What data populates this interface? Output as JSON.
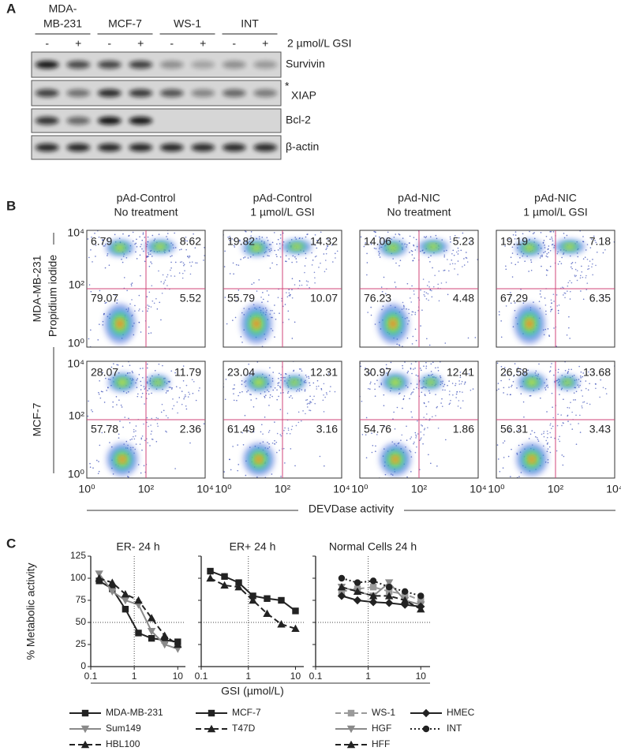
{
  "panel_a": {
    "label": "A",
    "groups": [
      [
        "MDA-",
        "MB-231"
      ],
      [
        "MCF-7"
      ],
      [
        "WS-1"
      ],
      [
        "INT"
      ]
    ],
    "lanes": [
      "-",
      "+",
      "-",
      "+",
      "-",
      "+",
      "-",
      "+"
    ],
    "treatment": "2 µmol/L GSI",
    "proteins": [
      "Survivin",
      "XIAP",
      "Bcl-2",
      "β-actin"
    ],
    "xiap_mark": "*"
  },
  "panel_b": {
    "label": "B",
    "columns": [
      [
        "pAd-Control",
        "No treatment"
      ],
      [
        "pAd-Control",
        "1 µmol/L GSI"
      ],
      [
        "pAd-NIC",
        "No treatment"
      ],
      [
        "pAd-NIC",
        "1 µmol/L GSI"
      ]
    ],
    "rows": [
      "MDA-MB-231",
      "MCF-7"
    ],
    "y_label": "Propidium iodide",
    "x_label": "DEVDase activity",
    "ticks": [
      "10⁰",
      "10²",
      "10⁴"
    ],
    "quadrants": [
      [
        [
          6.79,
          8.62,
          79.07,
          5.52
        ],
        [
          19.82,
          14.32,
          55.79,
          10.07
        ],
        [
          14.06,
          5.23,
          76.23,
          4.48
        ],
        [
          19.19,
          7.18,
          67.29,
          6.35
        ]
      ],
      [
        [
          28.07,
          11.79,
          57.78,
          2.36
        ],
        [
          23.04,
          12.31,
          61.49,
          3.16
        ],
        [
          30.97,
          12.41,
          54.76,
          1.86
        ],
        [
          26.58,
          13.68,
          56.31,
          3.43
        ]
      ]
    ]
  },
  "panel_c": {
    "label": "C"
  },
  "chart_data": [
    {
      "type": "line",
      "title": "ER-  24 h",
      "y_label": "% Metabolic activity",
      "log_x": true,
      "xlim": [
        0.1,
        15
      ],
      "xticks": [
        0.1,
        1,
        10
      ],
      "ylim": [
        0,
        125
      ],
      "yticks": [
        0,
        25,
        50,
        75,
        100,
        125
      ],
      "hline": 50,
      "vline": 1,
      "x": [
        0.156,
        0.3125,
        0.625,
        1.25,
        2.5,
        5,
        10
      ],
      "series": [
        {
          "name": "MDA-MB-231",
          "color": "#222222",
          "line_style": "solid",
          "marker": "square",
          "values": [
            97,
            88,
            65,
            38,
            32,
            30,
            28
          ]
        },
        {
          "name": "Sum149",
          "color": "#8a8a8a",
          "line_style": "solid",
          "marker": "triangle-down",
          "values": [
            105,
            85,
            75,
            70,
            40,
            25,
            20
          ]
        },
        {
          "name": "HBL100",
          "color": "#222222",
          "line_style": "dashed",
          "marker": "triangle",
          "values": [
            100,
            95,
            82,
            75,
            55,
            35,
            25
          ]
        }
      ]
    },
    {
      "type": "line",
      "title": "ER+ 24 h",
      "x_label": "GSI (µmol/L)",
      "log_x": true,
      "xlim": [
        0.1,
        15
      ],
      "xticks": [
        0.1,
        1,
        10
      ],
      "ylim": [
        0,
        125
      ],
      "yticks": [
        0,
        25,
        50,
        75,
        100,
        125
      ],
      "hline": 50,
      "vline": 1,
      "x": [
        0.156,
        0.3125,
        0.625,
        1.25,
        2.5,
        5,
        10
      ],
      "series": [
        {
          "name": "MCF-7",
          "color": "#222222",
          "line_style": "solid",
          "marker": "square",
          "values": [
            108,
            102,
            95,
            80,
            77,
            75,
            63
          ]
        },
        {
          "name": "T47D",
          "color": "#222222",
          "line_style": "dashed",
          "marker": "triangle",
          "values": [
            100,
            92,
            90,
            75,
            60,
            48,
            43
          ]
        }
      ]
    },
    {
      "type": "line",
      "title": "Normal Cells 24 h",
      "log_x": true,
      "xlim": [
        0.1,
        15
      ],
      "xticks": [
        0.1,
        1,
        10
      ],
      "ylim": [
        0,
        125
      ],
      "yticks": [
        0,
        25,
        50,
        75,
        100,
        125
      ],
      "hline": 50,
      "vline": 1,
      "x": [
        0.3125,
        0.625,
        1.25,
        2.5,
        5,
        10
      ],
      "series": [
        {
          "name": "WS-1",
          "color": "#9a9a9a",
          "line_style": "dashed",
          "marker": "square",
          "values": [
            85,
            88,
            90,
            85,
            82,
            75
          ]
        },
        {
          "name": "HGF",
          "color": "#8a8a8a",
          "line_style": "solid",
          "marker": "triangle-down",
          "values": [
            90,
            85,
            80,
            95,
            75,
            70
          ]
        },
        {
          "name": "HFF",
          "color": "#222222",
          "line_style": "dashed",
          "marker": "triangle",
          "values": [
            90,
            85,
            80,
            80,
            75,
            65
          ]
        },
        {
          "name": "HMEC",
          "color": "#222222",
          "line_style": "solid",
          "marker": "diamond",
          "values": [
            80,
            75,
            73,
            72,
            70,
            68
          ]
        },
        {
          "name": "INT",
          "color": "#222222",
          "line_style": "dotted",
          "marker": "circle",
          "values": [
            100,
            95,
            97,
            90,
            85,
            80
          ]
        }
      ]
    }
  ]
}
